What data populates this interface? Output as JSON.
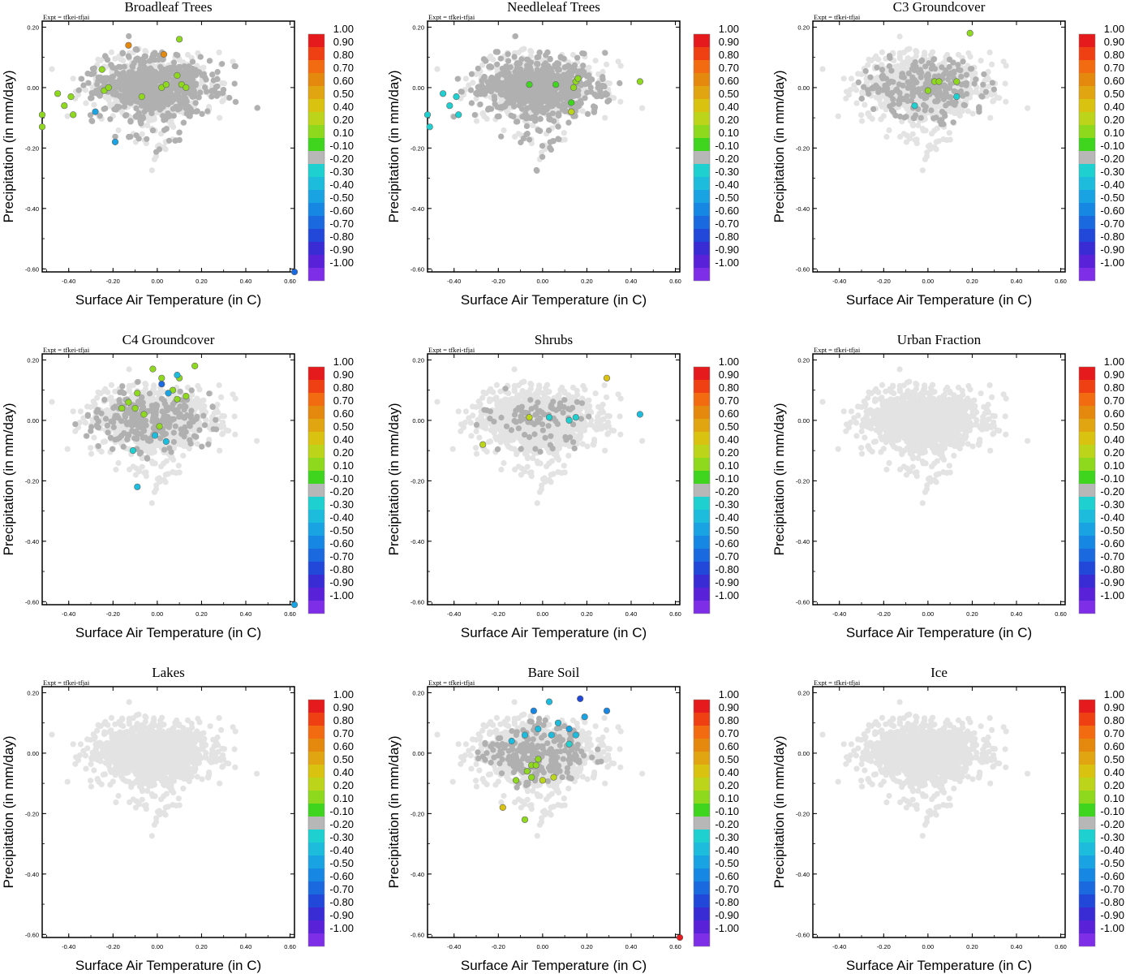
{
  "figure": {
    "rows": 3,
    "cols": 3,
    "expt_label": "Expt = tfkei-tfjai"
  },
  "colorbar": {
    "labels": [
      "1.00",
      "0.90",
      "0.80",
      "0.70",
      "0.60",
      "0.50",
      "0.40",
      "0.20",
      "0.10",
      "-0.10",
      "-0.20",
      "-0.30",
      "-0.40",
      "-0.50",
      "-0.60",
      "-0.70",
      "-0.80",
      "-0.90",
      "-1.00"
    ],
    "colors": [
      "#e41a1c",
      "#ee4012",
      "#f26b10",
      "#e5880e",
      "#e0a510",
      "#d9c210",
      "#bcd41a",
      "#8ed81e",
      "#3fd41e",
      "#b7b7b7",
      "#1fd0d0",
      "#1dbcdc",
      "#1aa3e2",
      "#1787e4",
      "#1b69df",
      "#2148d9",
      "#3a2cd4",
      "#5a22d8",
      "#7f2ee8"
    ],
    "neutral_color": "#b0b0b0",
    "background_color": "#e3e3e3"
  },
  "chart_data": [
    {
      "type": "scatter",
      "title": "Broadleaf Trees",
      "xlabel": "Surface Air Temperature (in C)",
      "ylabel": "Precipitation (in mm/day)",
      "xlim": [
        -0.52,
        0.62
      ],
      "ylim": [
        -0.61,
        0.22
      ],
      "xticks": [
        "-0.40",
        "-0.20",
        "0.00",
        "0.20",
        "0.40",
        "0.60"
      ],
      "yticks": [
        "0.20",
        "0.00",
        "-0.20",
        "-0.40",
        "-0.60"
      ],
      "grid": false,
      "neutral_points": "dense",
      "neutral_spread": 1.0,
      "colored_points": [
        {
          "x": -0.13,
          "y": 0.14,
          "value": 0.7
        },
        {
          "x": 0.03,
          "y": 0.11,
          "value": 0.7
        },
        {
          "x": 0.1,
          "y": 0.16,
          "value": 0.3
        },
        {
          "x": -0.25,
          "y": 0.06,
          "value": 0.2
        },
        {
          "x": -0.45,
          "y": -0.02,
          "value": 0.2
        },
        {
          "x": -0.42,
          "y": -0.06,
          "value": 0.2
        },
        {
          "x": -0.39,
          "y": -0.03,
          "value": 0.2
        },
        {
          "x": -0.52,
          "y": -0.09,
          "value": 0.2
        },
        {
          "x": -0.38,
          "y": -0.09,
          "value": 0.2
        },
        {
          "x": -0.24,
          "y": -0.01,
          "value": 0.2
        },
        {
          "x": -0.22,
          "y": 0.0,
          "value": 0.2
        },
        {
          "x": 0.02,
          "y": 0.0,
          "value": 0.2
        },
        {
          "x": 0.04,
          "y": 0.01,
          "value": 0.2
        },
        {
          "x": 0.09,
          "y": 0.04,
          "value": 0.2
        },
        {
          "x": 0.11,
          "y": 0.01,
          "value": 0.2
        },
        {
          "x": 0.13,
          "y": 0.0,
          "value": 0.2
        },
        {
          "x": -0.07,
          "y": -0.03,
          "value": 0.2
        },
        {
          "x": -0.52,
          "y": -0.13,
          "value": 0.2
        },
        {
          "x": -0.19,
          "y": -0.18,
          "value": -0.4
        },
        {
          "x": -0.28,
          "y": -0.08,
          "value": -0.4
        },
        {
          "x": 0.62,
          "y": -0.61,
          "value": -0.6
        }
      ]
    },
    {
      "type": "scatter",
      "title": "Needleleaf Trees",
      "xlabel": "Surface Air Temperature (in C)",
      "ylabel": "Precipitation (in mm/day)",
      "xlim": [
        -0.52,
        0.62
      ],
      "ylim": [
        -0.61,
        0.22
      ],
      "xticks": [
        "-0.40",
        "-0.20",
        "0.00",
        "0.20",
        "0.40",
        "0.60"
      ],
      "yticks": [
        "0.20",
        "0.00",
        "-0.20",
        "-0.40",
        "-0.60"
      ],
      "grid": false,
      "neutral_points": "dense",
      "neutral_spread": 1.0,
      "colored_points": [
        {
          "x": -0.45,
          "y": -0.02,
          "value": -0.2
        },
        {
          "x": -0.42,
          "y": -0.06,
          "value": -0.2
        },
        {
          "x": -0.39,
          "y": -0.03,
          "value": -0.2
        },
        {
          "x": -0.38,
          "y": -0.09,
          "value": -0.2
        },
        {
          "x": -0.52,
          "y": -0.09,
          "value": -0.2
        },
        {
          "x": -0.51,
          "y": -0.13,
          "value": -0.2
        },
        {
          "x": -0.06,
          "y": 0.01,
          "value": 0.1
        },
        {
          "x": 0.06,
          "y": 0.01,
          "value": 0.1
        },
        {
          "x": 0.13,
          "y": -0.05,
          "value": 0.1
        },
        {
          "x": 0.15,
          "y": 0.02,
          "value": 0.3
        },
        {
          "x": 0.16,
          "y": 0.03,
          "value": 0.3
        },
        {
          "x": 0.14,
          "y": 0.0,
          "value": 0.3
        },
        {
          "x": 0.44,
          "y": 0.02,
          "value": 0.3
        },
        {
          "x": 0.13,
          "y": -0.08,
          "value": 0.4
        }
      ]
    },
    {
      "type": "scatter",
      "title": "C3 Groundcover",
      "xlabel": "Surface Air Temperature (in C)",
      "ylabel": "Precipitation (in mm/day)",
      "xlim": [
        -0.52,
        0.62
      ],
      "ylim": [
        -0.61,
        0.22
      ],
      "xticks": [
        "-0.40",
        "-0.20",
        "0.00",
        "0.20",
        "0.40",
        "0.60"
      ],
      "yticks": [
        "0.20",
        "0.00",
        "-0.20",
        "-0.40",
        "-0.60"
      ],
      "grid": false,
      "neutral_points": "medium",
      "neutral_spread": 0.55,
      "colored_points": [
        {
          "x": 0.19,
          "y": 0.18,
          "value": 0.3
        },
        {
          "x": 0.03,
          "y": 0.02,
          "value": 0.2
        },
        {
          "x": 0.05,
          "y": 0.02,
          "value": 0.2
        },
        {
          "x": 0.13,
          "y": 0.02,
          "value": 0.2
        },
        {
          "x": 0.0,
          "y": -0.01,
          "value": 0.2
        },
        {
          "x": -0.06,
          "y": -0.06,
          "value": -0.2
        },
        {
          "x": 0.13,
          "y": -0.03,
          "value": -0.2
        }
      ]
    },
    {
      "type": "scatter",
      "title": "C4 Groundcover",
      "xlabel": "Surface Air Temperature (in C)",
      "ylabel": "Precipitation (in mm/day)",
      "xlim": [
        -0.52,
        0.62
      ],
      "ylim": [
        -0.61,
        0.22
      ],
      "xticks": [
        "-0.40",
        "-0.20",
        "0.00",
        "0.20",
        "0.40",
        "0.60"
      ],
      "yticks": [
        "0.20",
        "0.00",
        "-0.20",
        "-0.40",
        "-0.60"
      ],
      "grid": false,
      "neutral_points": "medium",
      "neutral_spread": 0.6,
      "colored_points": [
        {
          "x": -0.02,
          "y": 0.17,
          "value": 0.2
        },
        {
          "x": 0.17,
          "y": 0.18,
          "value": 0.3
        },
        {
          "x": 0.1,
          "y": 0.14,
          "value": 0.3
        },
        {
          "x": 0.02,
          "y": 0.14,
          "value": 0.2
        },
        {
          "x": 0.07,
          "y": 0.1,
          "value": 0.2
        },
        {
          "x": 0.13,
          "y": 0.08,
          "value": 0.3
        },
        {
          "x": 0.09,
          "y": 0.07,
          "value": 0.3
        },
        {
          "x": -0.09,
          "y": 0.09,
          "value": 0.2
        },
        {
          "x": -0.13,
          "y": 0.06,
          "value": 0.2
        },
        {
          "x": -0.16,
          "y": 0.04,
          "value": 0.2
        },
        {
          "x": -0.1,
          "y": 0.04,
          "value": 0.3
        },
        {
          "x": -0.06,
          "y": 0.02,
          "value": 0.3
        },
        {
          "x": 0.01,
          "y": -0.02,
          "value": 0.2
        },
        {
          "x": 0.09,
          "y": 0.15,
          "value": -0.3
        },
        {
          "x": 0.02,
          "y": 0.12,
          "value": -0.6
        },
        {
          "x": 0.05,
          "y": 0.09,
          "value": -0.4
        },
        {
          "x": -0.01,
          "y": -0.05,
          "value": -0.3
        },
        {
          "x": 0.04,
          "y": -0.07,
          "value": -0.3
        },
        {
          "x": -0.11,
          "y": -0.1,
          "value": -0.2
        },
        {
          "x": -0.09,
          "y": -0.22,
          "value": -0.3
        },
        {
          "x": 0.62,
          "y": -0.61,
          "value": -0.4
        }
      ]
    },
    {
      "type": "scatter",
      "title": "Shrubs",
      "xlabel": "Surface Air Temperature (in C)",
      "ylabel": "Precipitation (in mm/day)",
      "xlim": [
        -0.52,
        0.62
      ],
      "ylim": [
        -0.61,
        0.22
      ],
      "xticks": [
        "-0.40",
        "-0.20",
        "0.00",
        "0.20",
        "0.40",
        "0.60"
      ],
      "yticks": [
        "0.20",
        "0.00",
        "-0.20",
        "-0.40",
        "-0.60"
      ],
      "grid": false,
      "neutral_points": "sparse",
      "neutral_spread": 0.5,
      "colored_points": [
        {
          "x": 0.29,
          "y": 0.14,
          "value": 0.5
        },
        {
          "x": -0.06,
          "y": 0.01,
          "value": 0.4
        },
        {
          "x": -0.27,
          "y": -0.08,
          "value": 0.4
        },
        {
          "x": 0.03,
          "y": 0.01,
          "value": -0.2
        },
        {
          "x": 0.12,
          "y": 0.0,
          "value": -0.2
        },
        {
          "x": 0.15,
          "y": 0.01,
          "value": -0.2
        },
        {
          "x": 0.44,
          "y": 0.02,
          "value": -0.3
        }
      ]
    },
    {
      "type": "scatter",
      "title": "Urban Fraction",
      "xlabel": "Surface Air Temperature (in C)",
      "ylabel": "Precipitation (in mm/day)",
      "xlim": [
        -0.52,
        0.62
      ],
      "ylim": [
        -0.61,
        0.22
      ],
      "xticks": [
        "-0.40",
        "-0.20",
        "0.00",
        "0.20",
        "0.40",
        "0.60"
      ],
      "yticks": [
        "0.20",
        "0.00",
        "-0.20",
        "-0.40",
        "-0.60"
      ],
      "grid": false,
      "neutral_points": "none",
      "neutral_spread": 0,
      "colored_points": []
    },
    {
      "type": "scatter",
      "title": "Lakes",
      "xlabel": "Surface Air Temperature (in C)",
      "ylabel": "Precipitation (in mm/day)",
      "xlim": [
        -0.52,
        0.62
      ],
      "ylim": [
        -0.61,
        0.22
      ],
      "xticks": [
        "-0.40",
        "-0.20",
        "0.00",
        "0.20",
        "0.40",
        "0.60"
      ],
      "yticks": [
        "0.20",
        "0.00",
        "-0.20",
        "-0.40",
        "-0.60"
      ],
      "grid": false,
      "neutral_points": "none",
      "neutral_spread": 0,
      "colored_points": []
    },
    {
      "type": "scatter",
      "title": "Bare Soil",
      "xlabel": "Surface Air Temperature (in C)",
      "ylabel": "Precipitation (in mm/day)",
      "xlim": [
        -0.52,
        0.62
      ],
      "ylim": [
        -0.61,
        0.22
      ],
      "xticks": [
        "-0.40",
        "-0.20",
        "0.00",
        "0.20",
        "0.40",
        "0.60"
      ],
      "yticks": [
        "0.20",
        "0.00",
        "-0.20",
        "-0.40",
        "-0.60"
      ],
      "grid": false,
      "neutral_points": "medium",
      "neutral_spread": 0.5,
      "colored_points": [
        {
          "x": 0.17,
          "y": 0.18,
          "value": -0.7
        },
        {
          "x": 0.29,
          "y": 0.14,
          "value": -0.5
        },
        {
          "x": 0.19,
          "y": 0.12,
          "value": -0.4
        },
        {
          "x": 0.03,
          "y": 0.17,
          "value": -0.3
        },
        {
          "x": 0.07,
          "y": 0.1,
          "value": -0.3
        },
        {
          "x": 0.12,
          "y": 0.08,
          "value": -0.4
        },
        {
          "x": -0.02,
          "y": 0.08,
          "value": -0.3
        },
        {
          "x": 0.04,
          "y": 0.06,
          "value": -0.3
        },
        {
          "x": 0.15,
          "y": 0.06,
          "value": -0.3
        },
        {
          "x": -0.08,
          "y": 0.06,
          "value": -0.3
        },
        {
          "x": -0.14,
          "y": 0.04,
          "value": -0.3
        },
        {
          "x": -0.04,
          "y": 0.14,
          "value": -0.5
        },
        {
          "x": 0.12,
          "y": 0.03,
          "value": -0.2
        },
        {
          "x": -0.02,
          "y": -0.02,
          "value": 0.2
        },
        {
          "x": -0.05,
          "y": -0.04,
          "value": 0.2
        },
        {
          "x": -0.03,
          "y": -0.04,
          "value": 0.2
        },
        {
          "x": -0.07,
          "y": -0.06,
          "value": 0.2
        },
        {
          "x": -0.05,
          "y": -0.08,
          "value": 0.3
        },
        {
          "x": -0.12,
          "y": -0.09,
          "value": 0.3
        },
        {
          "x": 0.0,
          "y": -0.09,
          "value": 0.4
        },
        {
          "x": 0.05,
          "y": -0.08,
          "value": 0.4
        },
        {
          "x": -0.18,
          "y": -0.18,
          "value": 0.5
        },
        {
          "x": -0.08,
          "y": -0.22,
          "value": 0.2
        },
        {
          "x": 0.62,
          "y": -0.61,
          "value": 1.0
        }
      ]
    },
    {
      "type": "scatter",
      "title": "Ice",
      "xlabel": "Surface Air Temperature (in C)",
      "ylabel": "Precipitation (in mm/day)",
      "xlim": [
        -0.52,
        0.62
      ],
      "ylim": [
        -0.61,
        0.22
      ],
      "xticks": [
        "-0.40",
        "-0.20",
        "0.00",
        "0.20",
        "0.40",
        "0.60"
      ],
      "yticks": [
        "0.20",
        "0.00",
        "-0.20",
        "-0.40",
        "-0.60"
      ],
      "grid": false,
      "neutral_points": "none",
      "neutral_spread": 0,
      "colored_points": []
    }
  ]
}
